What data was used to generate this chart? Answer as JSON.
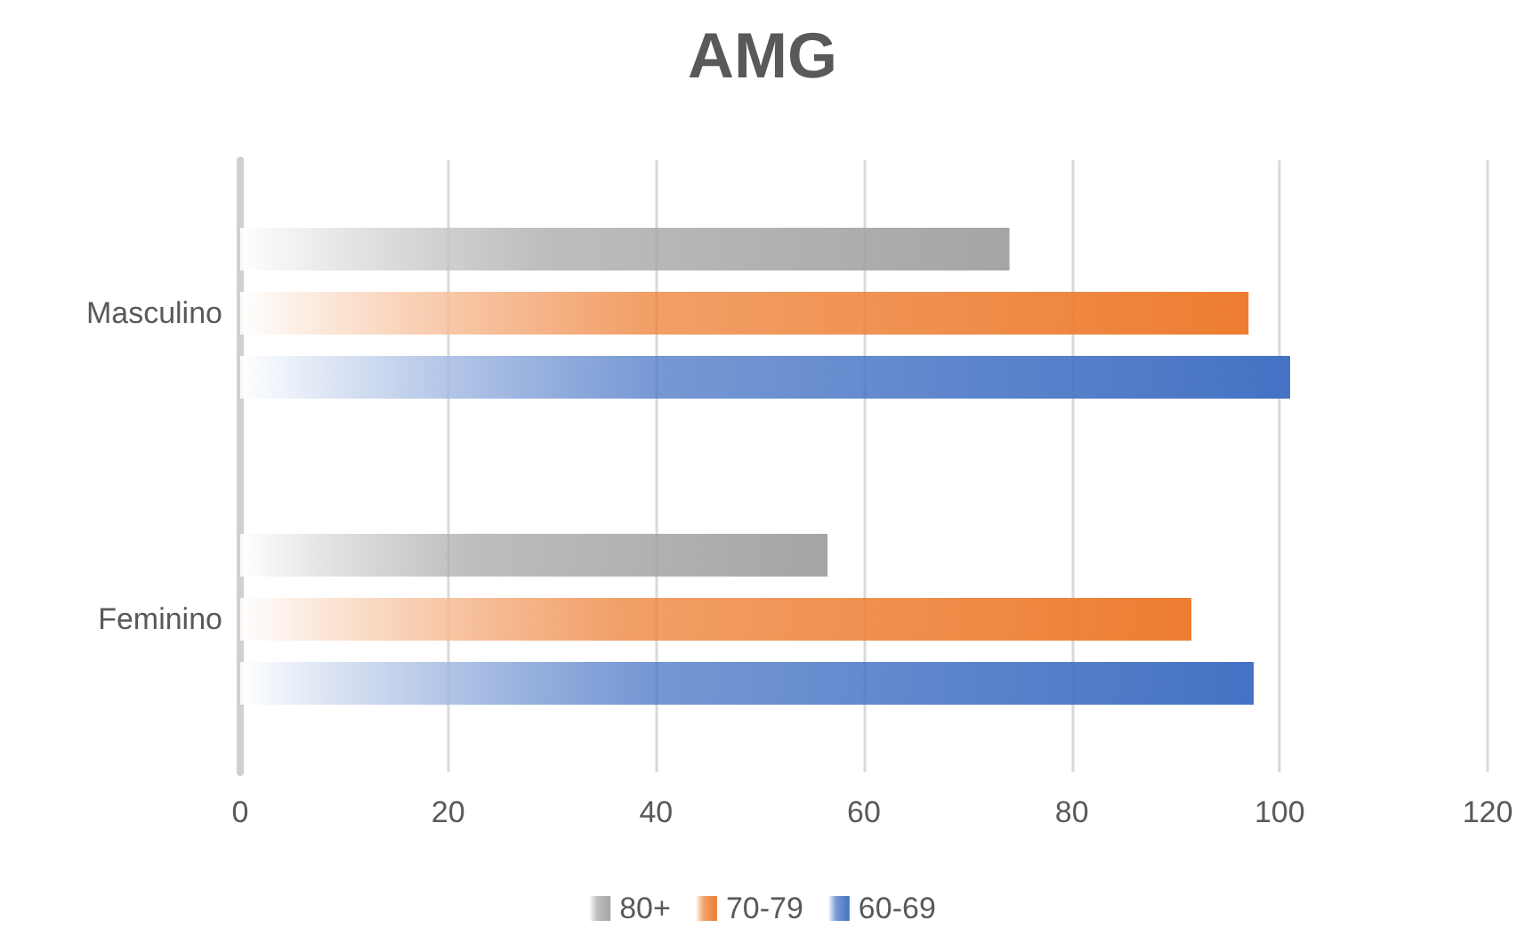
{
  "chart_data": {
    "type": "bar",
    "title": "AMG",
    "orientation": "horizontal",
    "categories": [
      "Masculino",
      "Feminino"
    ],
    "series": [
      {
        "name": "80+",
        "color": "#a5a5a5",
        "values": [
          74,
          56.5
        ]
      },
      {
        "name": "70-79",
        "color": "#ed7d31",
        "values": [
          97,
          91.5
        ]
      },
      {
        "name": "60-69",
        "color": "#4472c4",
        "values": [
          101,
          97.5
        ]
      }
    ],
    "xlim": [
      0,
      120
    ],
    "xticks": [
      0,
      20,
      40,
      60,
      80,
      100,
      120
    ],
    "grid": "x",
    "legend": "bottom"
  }
}
